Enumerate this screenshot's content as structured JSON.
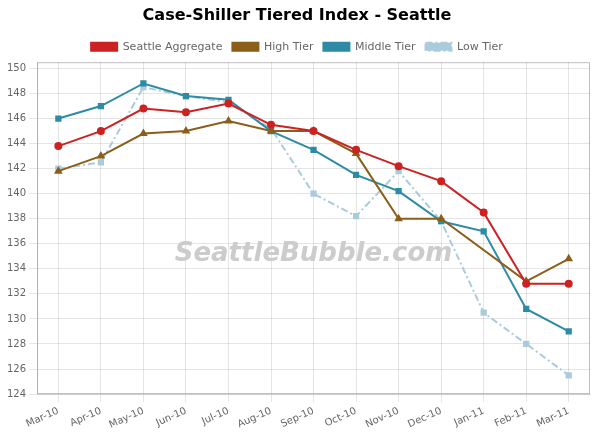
{
  "chart_data": {
    "type": "line",
    "title": "Case-Shiller Tiered Index - Seattle",
    "categories": [
      "Mar-10",
      "Apr-10",
      "May-10",
      "Jun-10",
      "Jul-10",
      "Aug-10",
      "Sep-10",
      "Oct-10",
      "Nov-10",
      "Dec-10",
      "Jan-11",
      "Feb-11",
      "Mar-11"
    ],
    "series": [
      {
        "name": "Low Tier",
        "color": "#AACBDC",
        "marker": "square",
        "line_style": "dashdot",
        "values": [
          142.0,
          142.5,
          148.5,
          147.8,
          147.3,
          145.2,
          140.0,
          138.2,
          141.8,
          137.8,
          130.5,
          128.0,
          125.5
        ]
      },
      {
        "name": "Middle Tier",
        "color": "#2D8BA5",
        "marker": "square",
        "line_style": "solid",
        "values": [
          146.0,
          147.0,
          148.8,
          147.8,
          147.5,
          145.0,
          143.5,
          141.5,
          140.2,
          137.8,
          137.0,
          130.8,
          129.0
        ]
      },
      {
        "name": "High Tier",
        "color": "#8B5E1A",
        "marker": "triangle",
        "line_style": "solid",
        "values": [
          141.8,
          143.0,
          144.8,
          145.0,
          145.8,
          145.0,
          145.0,
          143.2,
          138.0,
          138.0,
          null,
          133.0,
          134.8
        ]
      },
      {
        "name": "Seattle Aggregate",
        "color": "#CC2222",
        "marker": "circle",
        "line_style": "solid",
        "values": [
          143.8,
          145.0,
          146.8,
          146.5,
          147.2,
          145.5,
          145.0,
          143.5,
          142.2,
          141.0,
          138.5,
          132.8,
          132.8
        ]
      }
    ],
    "ylim": [
      124,
      150.5
    ],
    "yticks": [
      124,
      126,
      128,
      130,
      132,
      134,
      136,
      138,
      140,
      142,
      144,
      146,
      148,
      150
    ],
    "grid": true,
    "legend": "top",
    "annotations": [
      "SeattleBubble.com"
    ]
  }
}
